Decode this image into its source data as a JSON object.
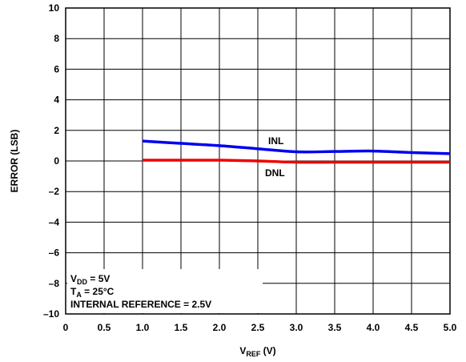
{
  "chart_data": {
    "type": "line",
    "xlabel": {
      "main": "V",
      "sub": "REF",
      "suffix": " (V)"
    },
    "ylabel": "ERROR (LSB)",
    "xlim": [
      0,
      5
    ],
    "ylim": [
      -10,
      10
    ],
    "x_ticks": [
      "0",
      "0.5",
      "1.0",
      "1.5",
      "2.0",
      "2.5",
      "3.0",
      "3.5",
      "4.0",
      "4.5",
      "5.0"
    ],
    "y_ticks": [
      "10",
      "8",
      "6",
      "4",
      "2",
      "0",
      "–2",
      "–4",
      "–6",
      "–8",
      "–10"
    ],
    "grid": true,
    "series": [
      {
        "name": "INL",
        "color": "#0000ee",
        "x": [
          1.0,
          1.5,
          2.0,
          2.5,
          3.0,
          3.5,
          4.0,
          4.5,
          5.0
        ],
        "y": [
          1.3,
          1.15,
          1.0,
          0.8,
          0.6,
          0.62,
          0.65,
          0.55,
          0.48
        ]
      },
      {
        "name": "DNL",
        "color": "#ee0000",
        "x": [
          1.0,
          1.5,
          2.0,
          2.5,
          3.0,
          3.5,
          4.0,
          4.5,
          5.0
        ],
        "y": [
          0.05,
          0.05,
          0.05,
          0.0,
          -0.08,
          -0.08,
          -0.08,
          -0.08,
          -0.08
        ]
      }
    ],
    "conditions": {
      "vdd": {
        "main": "V",
        "sub": "DD",
        "suffix": " = 5V"
      },
      "ta": {
        "main": "T",
        "sub": "A",
        "suffix": " = 25°C"
      },
      "ref": "INTERNAL REFERENCE = 2.5V"
    }
  }
}
